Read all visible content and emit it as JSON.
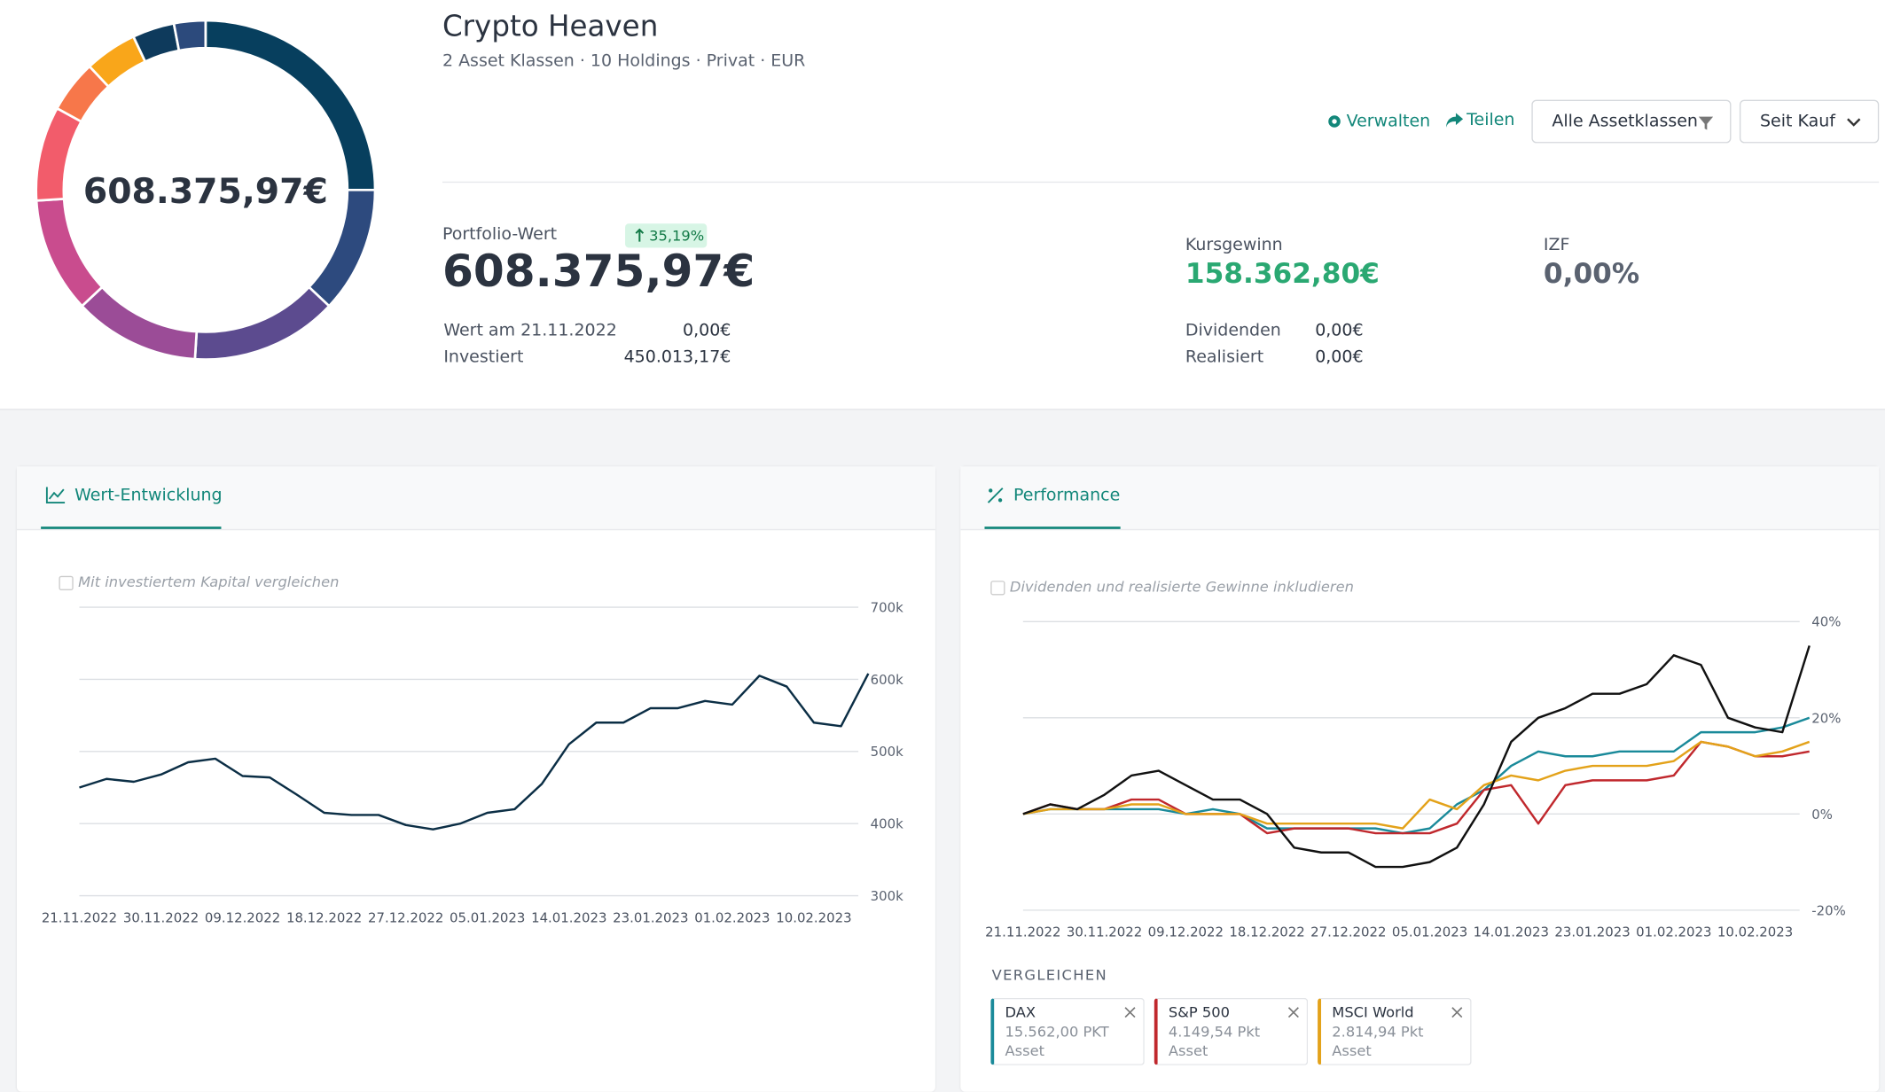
{
  "header": {
    "title": "Crypto Heaven",
    "subtitle": "2 Asset Klassen · 10 Holdings · Privat · EUR",
    "actions": [
      "Verwalten",
      "Teilen"
    ],
    "filters": [
      "Alle Assetklassen",
      "Seit Kauf"
    ]
  },
  "stats": {
    "portfolio": {
      "label": "Portfolio-Wert",
      "badge": "35,19%",
      "value": "608.375,97€",
      "rows": [
        [
          "Wert am 21.11.2022",
          "0,00€"
        ],
        [
          "Investiert",
          "450.013,17€"
        ]
      ]
    },
    "kursgewinn": {
      "label": "Kursgewinn",
      "value": "158.362,80€",
      "rows": [
        [
          "Dividenden",
          "0,00€"
        ],
        [
          "Realisiert",
          "0,00€"
        ]
      ]
    },
    "izf": {
      "label": "IZF",
      "value": "0,00%"
    }
  },
  "chart_data": [
    {
      "type": "pie",
      "center_label": "608.375,97€",
      "values": [
        25,
        12,
        14,
        12,
        11,
        9,
        5,
        5,
        4,
        3
      ],
      "colors": [
        "#073f5e",
        "#2d4a7e",
        "#5c4b8f",
        "#9b4c97",
        "#c94c8e",
        "#f25c6b",
        "#f7774a",
        "#f9a61a",
        "#0e3a5c",
        "#2c4a7c"
      ]
    },
    {
      "type": "line",
      "tab": "Wert-Entwicklung",
      "checkbox": "Mit investiertem Kapital vergleichen",
      "x": [
        "21.11.2022",
        "24.11.2022",
        "27.11.2022",
        "30.11.2022",
        "03.12.2022",
        "06.12.2022",
        "09.12.2022",
        "12.12.2022",
        "15.12.2022",
        "18.12.2022",
        "21.12.2022",
        "24.12.2022",
        "27.12.2022",
        "30.12.2022",
        "02.01.2023",
        "05.01.2023",
        "08.01.2023",
        "11.01.2023",
        "14.01.2023",
        "17.01.2023",
        "20.01.2023",
        "23.01.2023",
        "26.01.2023",
        "29.01.2023",
        "01.02.2023",
        "04.02.2023",
        "07.02.2023",
        "10.02.2023",
        "13.02.2023",
        "16.02.2023"
      ],
      "xticks": [
        "21.11.2022",
        "30.11.2022",
        "09.12.2022",
        "18.12.2022",
        "27.12.2022",
        "05.01.2023",
        "14.01.2023",
        "23.01.2023",
        "01.02.2023",
        "10.02.2023"
      ],
      "values": [
        450000,
        462000,
        458000,
        468000,
        485000,
        490000,
        466000,
        464000,
        440000,
        415000,
        412000,
        412000,
        398000,
        392000,
        400000,
        415000,
        420000,
        455000,
        510000,
        540000,
        540000,
        560000,
        560000,
        570000,
        565000,
        605000,
        590000,
        540000,
        535000,
        608000
      ],
      "color": "#0b2e45",
      "ylim": [
        300000,
        700000
      ],
      "yticks": [
        {
          "value": 300000,
          "label": "300k"
        },
        {
          "value": 400000,
          "label": "400k"
        },
        {
          "value": 500000,
          "label": "500k"
        },
        {
          "value": 600000,
          "label": "600k"
        },
        {
          "value": 700000,
          "label": "700k"
        }
      ],
      "grid": true
    },
    {
      "type": "line",
      "tab": "Performance",
      "checkbox": "Dividenden und realisierte Gewinne inkludieren",
      "x": [
        "21.11.2022",
        "24.11.2022",
        "27.11.2022",
        "30.11.2022",
        "03.12.2022",
        "06.12.2022",
        "09.12.2022",
        "12.12.2022",
        "15.12.2022",
        "18.12.2022",
        "21.12.2022",
        "24.12.2022",
        "27.12.2022",
        "30.12.2022",
        "02.01.2023",
        "05.01.2023",
        "08.01.2023",
        "11.01.2023",
        "14.01.2023",
        "17.01.2023",
        "20.01.2023",
        "23.01.2023",
        "26.01.2023",
        "29.01.2023",
        "01.02.2023",
        "04.02.2023",
        "07.02.2023",
        "10.02.2023",
        "13.02.2023",
        "16.02.2023"
      ],
      "xticks": [
        "21.11.2022",
        "30.11.2022",
        "09.12.2022",
        "18.12.2022",
        "27.12.2022",
        "05.01.2023",
        "14.01.2023",
        "23.01.2023",
        "01.02.2023",
        "10.02.2023"
      ],
      "series": [
        {
          "name": "DAX",
          "color": "#1a8a9a",
          "values": [
            0,
            1,
            1,
            1,
            1,
            1,
            0,
            1,
            0,
            -3,
            -3,
            -3,
            -3,
            -3,
            -4,
            -3,
            2,
            5,
            10,
            13,
            12,
            12,
            13,
            13,
            13,
            17,
            17,
            17,
            18,
            20
          ]
        },
        {
          "name": "S&P 500",
          "color": "#c0282d",
          "values": [
            0,
            2,
            1,
            1,
            3,
            3,
            0,
            0,
            0,
            -4,
            -3,
            -3,
            -3,
            -4,
            -4,
            -4,
            -2,
            5,
            6,
            -2,
            6,
            7,
            7,
            7,
            8,
            15,
            14,
            12,
            12,
            13
          ]
        },
        {
          "name": "MSCI World",
          "color": "#e3a21a",
          "values": [
            0,
            1,
            1,
            1,
            2,
            2,
            0,
            0,
            0,
            -2,
            -2,
            -2,
            -2,
            -2,
            -3,
            3,
            1,
            6,
            8,
            7,
            9,
            10,
            10,
            10,
            11,
            15,
            14,
            12,
            13,
            15
          ]
        },
        {
          "color": "#111111",
          "values": [
            0,
            2,
            1,
            4,
            8,
            9,
            6,
            3,
            3,
            0,
            -7,
            -8,
            -8,
            -11,
            -11,
            -10,
            -7,
            2,
            15,
            20,
            22,
            25,
            25,
            27,
            33,
            31,
            20,
            18,
            17,
            35
          ]
        }
      ],
      "ylim": [
        -20,
        40
      ],
      "yticks": [
        {
          "value": -20,
          "label": "-20%"
        },
        {
          "value": 0,
          "label": "0%"
        },
        {
          "value": 20,
          "label": "20%"
        },
        {
          "value": 40,
          "label": "40%"
        }
      ],
      "grid": true
    }
  ],
  "compare": {
    "title": "VERGLEICHEN",
    "items": [
      {
        "value": "15.562,00 PKT",
        "kind": "Asset"
      },
      {
        "value": "4.149,54 Pkt",
        "kind": "Asset"
      },
      {
        "value": "2.814,94 Pkt",
        "kind": "Asset"
      }
    ]
  }
}
